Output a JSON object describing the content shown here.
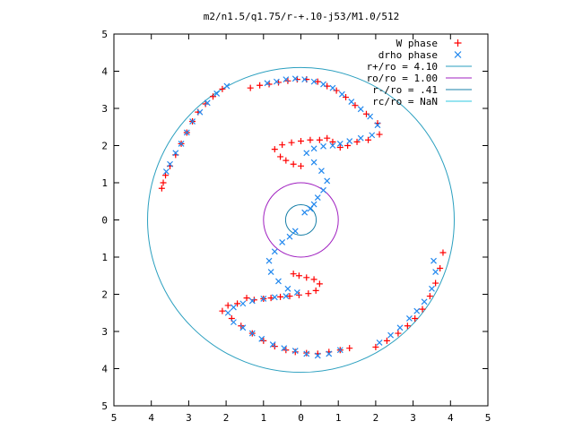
{
  "chart_data": {
    "type": "scatter",
    "title": "m2/n1.5/q1.75/r-+.10-j53/M1.0/512",
    "xlim": [
      -5,
      5
    ],
    "ylim": [
      -5,
      5
    ],
    "x_tick_labels": [
      "5",
      "4",
      "3",
      "2",
      "1",
      "0",
      "1",
      "2",
      "3",
      "4",
      "5"
    ],
    "y_tick_labels": [
      "5",
      "4",
      "3",
      "2",
      "1",
      "0",
      "1",
      "2",
      "3",
      "4",
      "5"
    ],
    "grid": false,
    "legend_position": "top-right",
    "series": [
      {
        "name": "W phase",
        "marker": "+",
        "color": "#ff0000",
        "points": [
          [
            -3.72,
            0.85
          ],
          [
            -3.68,
            1.0
          ],
          [
            -3.62,
            1.2
          ],
          [
            -3.5,
            1.45
          ],
          [
            -3.35,
            1.75
          ],
          [
            -3.2,
            2.05
          ],
          [
            -3.05,
            2.35
          ],
          [
            -2.9,
            2.65
          ],
          [
            -2.75,
            2.9
          ],
          [
            -2.55,
            3.12
          ],
          [
            -2.35,
            3.32
          ],
          [
            -2.1,
            3.52
          ],
          [
            -1.35,
            3.55
          ],
          [
            -1.1,
            3.62
          ],
          [
            -0.85,
            3.65
          ],
          [
            -0.6,
            3.7
          ],
          [
            -0.35,
            3.74
          ],
          [
            -0.1,
            3.78
          ],
          [
            0.15,
            3.78
          ],
          [
            0.45,
            3.72
          ],
          [
            0.7,
            3.6
          ],
          [
            0.95,
            3.48
          ],
          [
            1.2,
            3.3
          ],
          [
            1.45,
            3.08
          ],
          [
            1.75,
            2.85
          ],
          [
            2.05,
            2.6
          ],
          [
            2.1,
            2.3
          ],
          [
            1.8,
            2.15
          ],
          [
            1.5,
            2.1
          ],
          [
            1.25,
            2.0
          ],
          [
            1.05,
            1.95
          ],
          [
            0.85,
            2.1
          ],
          [
            0.7,
            2.2
          ],
          [
            0.5,
            2.15
          ],
          [
            0.25,
            2.15
          ],
          [
            0.0,
            2.12
          ],
          [
            -0.25,
            2.08
          ],
          [
            -0.5,
            2.02
          ],
          [
            -0.7,
            1.9
          ],
          [
            -0.55,
            1.7
          ],
          [
            -0.4,
            1.6
          ],
          [
            -0.2,
            1.5
          ],
          [
            0.0,
            1.45
          ],
          [
            -0.2,
            -1.45
          ],
          [
            -0.05,
            -1.5
          ],
          [
            0.15,
            -1.55
          ],
          [
            0.35,
            -1.6
          ],
          [
            0.5,
            -1.72
          ],
          [
            0.4,
            -1.9
          ],
          [
            0.2,
            -1.98
          ],
          [
            -0.05,
            -2.02
          ],
          [
            -0.3,
            -2.05
          ],
          [
            -0.55,
            -2.07
          ],
          [
            -0.8,
            -2.1
          ],
          [
            -1.0,
            -2.12
          ],
          [
            -1.25,
            -2.15
          ],
          [
            -1.45,
            -2.1
          ],
          [
            -1.7,
            -2.25
          ],
          [
            -1.95,
            -2.3
          ],
          [
            -2.1,
            -2.45
          ],
          [
            -1.85,
            -2.65
          ],
          [
            -1.6,
            -2.85
          ],
          [
            -1.3,
            -3.05
          ],
          [
            -1.0,
            -3.25
          ],
          [
            -0.7,
            -3.4
          ],
          [
            -0.4,
            -3.5
          ],
          [
            -0.15,
            -3.55
          ],
          [
            0.15,
            -3.58
          ],
          [
            0.45,
            -3.6
          ],
          [
            0.75,
            -3.55
          ],
          [
            1.05,
            -3.5
          ],
          [
            1.3,
            -3.45
          ],
          [
            2.0,
            -3.42
          ],
          [
            2.3,
            -3.25
          ],
          [
            2.6,
            -3.05
          ],
          [
            2.85,
            -2.85
          ],
          [
            3.05,
            -2.65
          ],
          [
            3.25,
            -2.4
          ],
          [
            3.45,
            -2.05
          ],
          [
            3.6,
            -1.7
          ],
          [
            3.72,
            -1.3
          ],
          [
            3.8,
            -0.88
          ]
        ]
      },
      {
        "name": "drho phase",
        "marker": "x",
        "color": "#2288ee",
        "points": [
          [
            -3.6,
            1.3
          ],
          [
            -3.5,
            1.5
          ],
          [
            -3.35,
            1.8
          ],
          [
            -3.2,
            2.05
          ],
          [
            -3.05,
            2.35
          ],
          [
            -2.9,
            2.65
          ],
          [
            -2.7,
            2.9
          ],
          [
            -2.5,
            3.15
          ],
          [
            -2.25,
            3.4
          ],
          [
            -1.98,
            3.6
          ],
          [
            -0.9,
            3.68
          ],
          [
            -0.65,
            3.72
          ],
          [
            -0.4,
            3.78
          ],
          [
            -0.15,
            3.8
          ],
          [
            0.1,
            3.78
          ],
          [
            0.35,
            3.72
          ],
          [
            0.6,
            3.65
          ],
          [
            0.85,
            3.55
          ],
          [
            1.1,
            3.38
          ],
          [
            1.35,
            3.18
          ],
          [
            1.6,
            2.98
          ],
          [
            1.85,
            2.78
          ],
          [
            2.05,
            2.55
          ],
          [
            1.9,
            2.28
          ],
          [
            1.6,
            2.2
          ],
          [
            1.3,
            2.12
          ],
          [
            1.05,
            2.05
          ],
          [
            0.85,
            2.0
          ],
          [
            0.6,
            1.98
          ],
          [
            0.35,
            1.92
          ],
          [
            0.15,
            1.8
          ],
          [
            0.35,
            1.55
          ],
          [
            0.55,
            1.32
          ],
          [
            0.7,
            1.05
          ],
          [
            0.6,
            0.8
          ],
          [
            0.45,
            0.6
          ],
          [
            0.35,
            0.42
          ],
          [
            0.25,
            0.3
          ],
          [
            0.1,
            0.2
          ],
          [
            -0.15,
            -0.3
          ],
          [
            -0.3,
            -0.45
          ],
          [
            -0.5,
            -0.6
          ],
          [
            -0.7,
            -0.85
          ],
          [
            -0.85,
            -1.1
          ],
          [
            -0.8,
            -1.4
          ],
          [
            -0.6,
            -1.65
          ],
          [
            -0.35,
            -1.85
          ],
          [
            -0.1,
            -1.95
          ],
          [
            -0.4,
            -2.05
          ],
          [
            -0.7,
            -2.08
          ],
          [
            -1.0,
            -2.12
          ],
          [
            -1.3,
            -2.18
          ],
          [
            -1.55,
            -2.25
          ],
          [
            -1.8,
            -2.35
          ],
          [
            -1.95,
            -2.5
          ],
          [
            -1.8,
            -2.75
          ],
          [
            -1.55,
            -2.9
          ],
          [
            -1.3,
            -3.05
          ],
          [
            -1.05,
            -3.2
          ],
          [
            -0.75,
            -3.35
          ],
          [
            -0.45,
            -3.45
          ],
          [
            -0.15,
            -3.52
          ],
          [
            0.15,
            -3.6
          ],
          [
            0.45,
            -3.65
          ],
          [
            0.75,
            -3.6
          ],
          [
            1.05,
            -3.5
          ],
          [
            2.1,
            -3.3
          ],
          [
            2.4,
            -3.1
          ],
          [
            2.65,
            -2.9
          ],
          [
            2.9,
            -2.65
          ],
          [
            3.1,
            -2.45
          ],
          [
            3.3,
            -2.2
          ],
          [
            3.5,
            -1.85
          ],
          [
            3.6,
            -1.4
          ],
          [
            3.55,
            -1.1
          ]
        ]
      }
    ],
    "circles": [
      {
        "name": "r+/ro = 4.10",
        "radius": 4.1,
        "color": "#2a9fbf"
      },
      {
        "name": "ro/ro = 1.00",
        "radius": 1.0,
        "color": "#a020c0"
      },
      {
        "name": "r-/ro = .41",
        "radius": 0.41,
        "color": "#1a80a8"
      },
      {
        "name": "rc/ro = NaN",
        "radius": null,
        "color": "#2ec8e0"
      }
    ]
  }
}
